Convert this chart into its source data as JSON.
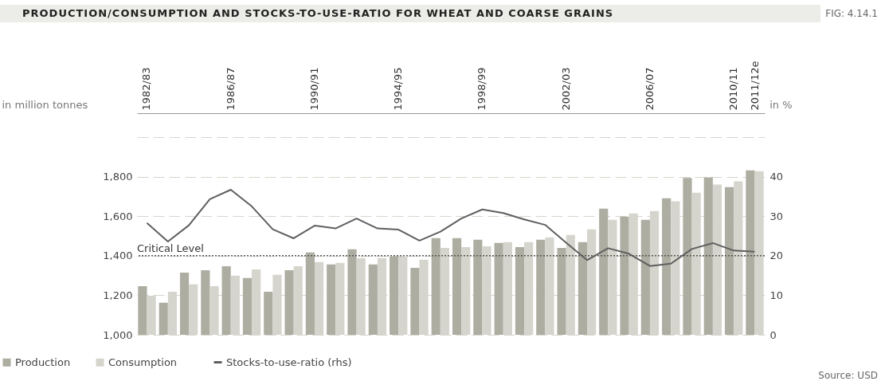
{
  "chart_data": {
    "type": "bar",
    "title": "PRODUCTION/CONSUMPTION AND STOCKS-TO-USE-RATIO FOR WHEAT AND COARSE GRAINS",
    "annotations": [
      "FIG: 4.14.1",
      "Source: USD"
    ],
    "ylabel": "in million tonnes",
    "y2label": "in %",
    "categories": [
      "1982/83",
      null,
      null,
      null,
      "1986/87",
      null,
      null,
      null,
      "1990/91",
      null,
      null,
      null,
      "1994/95",
      null,
      null,
      null,
      "1998/99",
      null,
      null,
      null,
      "2002/03",
      null,
      null,
      null,
      "2006/07",
      null,
      null,
      null,
      "2010/11",
      "2011/12e"
    ],
    "series": [
      {
        "name": "Production",
        "type": "bar",
        "color": "#adada2",
        "values": [
          1246,
          1162,
          1315,
          1327,
          1347,
          1287,
          1218,
          1327,
          1416,
          1356,
          1432,
          1356,
          1396,
          1339,
          1489,
          1489,
          1481,
          1465,
          1444,
          1481,
          1440,
          1469,
          1638,
          1598,
          1582,
          1691,
          1793,
          1796,
          1747,
          1832
        ]
      },
      {
        "name": "Consumption",
        "type": "bar",
        "color": "#d5d5cd",
        "values": [
          1198,
          1218,
          1255,
          1246,
          1299,
          1331,
          1303,
          1347,
          1368,
          1364,
          1388,
          1388,
          1396,
          1380,
          1440,
          1444,
          1448,
          1469,
          1469,
          1493,
          1505,
          1533,
          1582,
          1614,
          1626,
          1675,
          1719,
          1760,
          1776,
          1828
        ]
      },
      {
        "name": "Stocks-to-use-ratio (rhs)",
        "type": "line",
        "axis": "y2",
        "color": "#5f5f5f",
        "values": [
          28.3,
          23.6,
          27.7,
          34.3,
          36.7,
          32.5,
          26.7,
          24.4,
          27.6,
          26.9,
          29.4,
          26.9,
          26.6,
          23.8,
          26.1,
          29.4,
          31.7,
          30.8,
          29.2,
          27.8,
          23.3,
          18.9,
          21.9,
          20.5,
          17.4,
          18.0,
          21.7,
          23.2,
          21.3,
          21.0
        ]
      }
    ],
    "ylim": [
      1000,
      2000
    ],
    "yticks": [
      {
        "value": 1000,
        "label": "1,000"
      },
      {
        "value": 1200,
        "label": "1,200"
      },
      {
        "value": 1400,
        "label": "1,400"
      },
      {
        "value": 1600,
        "label": "1,600"
      },
      {
        "value": 1800,
        "label": "1,800"
      },
      {
        "value": 2000,
        "label": null
      }
    ],
    "y2lim": [
      0,
      50
    ],
    "y2ticks": [
      0,
      10,
      20,
      30,
      40
    ],
    "ref_lines": [
      {
        "axis": "y2",
        "value": 20,
        "label": "Critical Level",
        "color": "#555555",
        "line_style": "dotted"
      }
    ],
    "grid": "y",
    "legend": "bottom left"
  }
}
